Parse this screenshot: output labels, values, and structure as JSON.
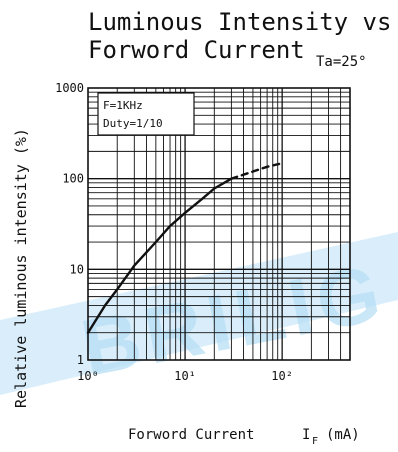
{
  "chart_data": {
    "type": "line",
    "title_line1": "Luminous Intensity vs",
    "title_line2": "Forword Current",
    "condition": "Ta=25°",
    "xlabel": "Forword Current",
    "xlabel_symbol": "I",
    "xlabel_subscript": "F",
    "xlabel_unit": "(mA)",
    "ylabel": "Relative luminous intensity (%)",
    "x_scale": "log",
    "y_scale": "log",
    "xlim": [
      1,
      500
    ],
    "ylim": [
      1,
      1000
    ],
    "x_ticks": [
      "10⁰",
      "10¹",
      "10²"
    ],
    "y_ticks": [
      "1",
      "10",
      "100",
      "1000"
    ],
    "grid": true,
    "legend_box": [
      "F=1KHz",
      "Duty=1/10"
    ],
    "watermark": "BRILIG",
    "series": [
      {
        "line_style": "solid",
        "color": "#111111",
        "points": [
          {
            "x": 1.0,
            "y": 2.0
          },
          {
            "x": 1.5,
            "y": 4.0
          },
          {
            "x": 2.0,
            "y": 6.0
          },
          {
            "x": 3.0,
            "y": 11.0
          },
          {
            "x": 5.0,
            "y": 20.0
          },
          {
            "x": 7.0,
            "y": 30.0
          },
          {
            "x": 10.0,
            "y": 42.0
          },
          {
            "x": 15.0,
            "y": 60.0
          },
          {
            "x": 20.0,
            "y": 78.0
          },
          {
            "x": 30.0,
            "y": 100.0
          }
        ]
      },
      {
        "line_style": "dashed",
        "color": "#111111",
        "points": [
          {
            "x": 30.0,
            "y": 100.0
          },
          {
            "x": 50.0,
            "y": 120.0
          },
          {
            "x": 70.0,
            "y": 135.0
          },
          {
            "x": 100.0,
            "y": 148.0
          }
        ]
      }
    ]
  }
}
